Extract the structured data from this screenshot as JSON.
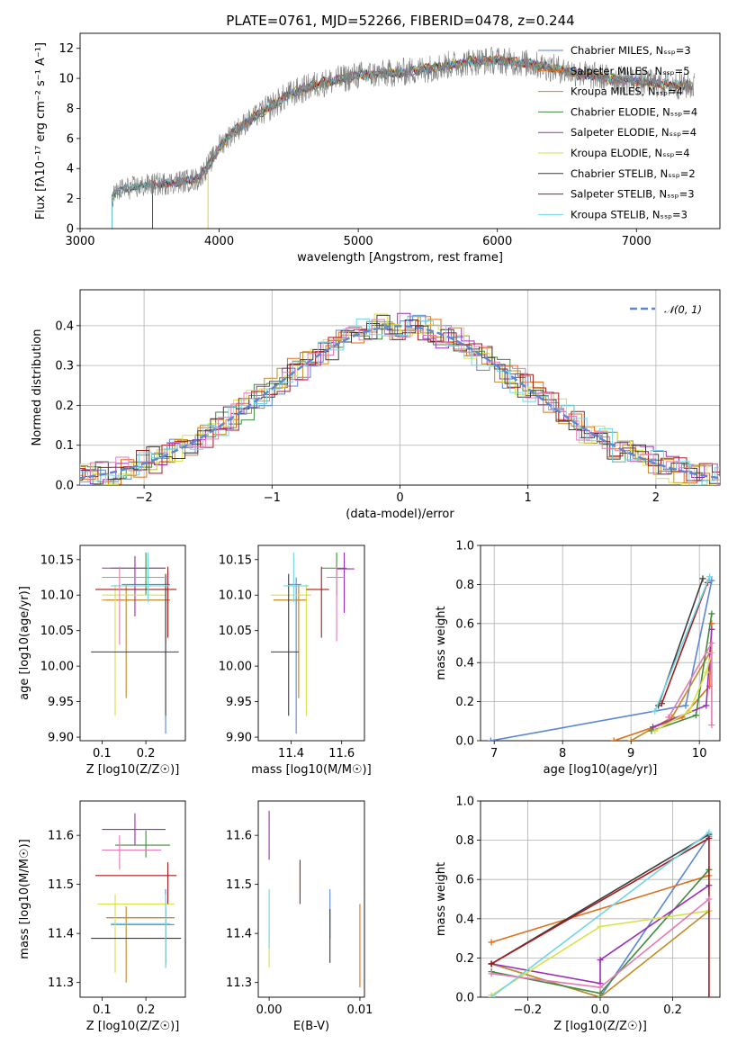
{
  "figure_title": "PLATE=0761, MJD=52266, FIBERID=0478, z=0.244",
  "colors": {
    "Chabrier MILES": "#5b86d6",
    "Salpeter MILES": "#e06f1b",
    "Kroupa MILES": "#c48a23",
    "Chabrier ELODIE": "#3f8a3f",
    "Salpeter ELODIE": "#9b2eb8",
    "Kroupa ELODIE": "#d8e14a",
    "Chabrier STELIB": "#3c3c3c",
    "Salpeter STELIB": "#a81a1a",
    "Kroupa STELIB": "#6fd6e6",
    "pink": "#e57ab5",
    "gaussian": "#5b86d6"
  },
  "chart_data": [
    {
      "id": "spectrum",
      "type": "line",
      "title": "PLATE=0761, MJD=52266, FIBERID=0478, z=0.244",
      "xlabel": "wavelength [Angstrom, rest frame]",
      "ylabel": "Flux [fλ10⁻¹⁷ erg cm⁻² s⁻¹ A⁻¹]",
      "xlim": [
        3000,
        7600
      ],
      "ylim": [
        0,
        13
      ],
      "xticks": [
        3000,
        4000,
        5000,
        6000,
        7000
      ],
      "yticks": [
        0,
        2,
        4,
        6,
        8,
        10,
        12
      ],
      "legend": [
        "Chabrier MILES, N_SSP=3",
        "Salpeter MILES, N_SSP=5",
        "Kroupa MILES, N_SSP=4",
        "Chabrier ELODIE, N_SSP=4",
        "Salpeter ELODIE, N_SSP=4",
        "Kroupa ELODIE, N_SSP=4",
        "Chabrier STELIB, N_SSP=2",
        "Salpeter STELIB, N_SSP=3",
        "Kroupa STELIB, N_SSP=3"
      ],
      "legend_position": "right",
      "continuum": {
        "x": [
          3230,
          3300,
          3500,
          3700,
          3850,
          3950,
          4000,
          4100,
          4200,
          4300,
          4500,
          4700,
          4900,
          5000,
          5200,
          5400,
          5600,
          5800,
          6000,
          6200,
          6400,
          6600,
          6800,
          7000,
          7200,
          7400
        ],
        "y": [
          2.2,
          2.6,
          2.9,
          3.1,
          3.3,
          4.6,
          5.5,
          6.4,
          7.1,
          7.7,
          8.9,
          9.6,
          10.0,
          10.2,
          10.3,
          10.5,
          10.8,
          11.1,
          11.2,
          11.0,
          10.7,
          10.3,
          10.0,
          9.8,
          9.6,
          9.5
        ]
      }
    },
    {
      "id": "residuals",
      "type": "histogram",
      "xlabel": "(data-model)/error",
      "ylabel": "Normed distribution",
      "xlim": [
        -2.5,
        2.5
      ],
      "ylim": [
        0,
        0.49
      ],
      "xticks": [
        -2,
        -1,
        0,
        1,
        2
      ],
      "yticks": [
        0.0,
        0.1,
        0.2,
        0.3,
        0.4
      ],
      "legend": [
        "N(0,1)"
      ],
      "grid": true
    },
    {
      "id": "age_vs_Z",
      "type": "errorbar",
      "xlabel": "Z [log10(Z/Z☉)]",
      "ylabel": "age  [log10(age/yr)]",
      "xlim": [
        0.05,
        0.29
      ],
      "ylim": [
        9.895,
        10.17
      ],
      "xticks": [
        0.1,
        0.2
      ],
      "yticks": [
        9.9,
        9.95,
        10.0,
        10.05,
        10.1,
        10.15
      ],
      "points": [
        {
          "c": "Chabrier MILES",
          "x": 0.245,
          "y": 10.115,
          "xl": 0.145,
          "xh": 0.255,
          "yl": 9.905,
          "yh": 10.125
        },
        {
          "c": "Salpeter MILES",
          "x": 0.245,
          "y": 10.093,
          "xl": 0.11,
          "xh": 0.255,
          "yl": 10.03,
          "yh": 10.115
        },
        {
          "c": "Kroupa MILES",
          "x": 0.155,
          "y": 10.093,
          "xl": 0.1,
          "xh": 0.255,
          "yl": 9.955,
          "yh": 10.115
        },
        {
          "c": "Chabrier ELODIE",
          "x": 0.2,
          "y": 10.138,
          "xl": 0.12,
          "xh": 0.245,
          "yl": 10.1,
          "yh": 10.16
        },
        {
          "c": "Salpeter ELODIE",
          "x": 0.175,
          "y": 10.138,
          "xl": 0.1,
          "xh": 0.245,
          "yl": 10.07,
          "yh": 10.155
        },
        {
          "c": "Kroupa ELODIE",
          "x": 0.13,
          "y": 10.1,
          "xl": 0.1,
          "xh": 0.245,
          "yl": 9.93,
          "yh": 10.115
        },
        {
          "c": "Chabrier STELIB",
          "x": 0.245,
          "y": 10.02,
          "xl": 0.075,
          "xh": 0.275,
          "yl": 9.93,
          "yh": 10.13
        },
        {
          "c": "Salpeter STELIB",
          "x": 0.25,
          "y": 10.108,
          "xl": 0.085,
          "xh": 0.27,
          "yl": 10.04,
          "yh": 10.14
        },
        {
          "c": "Kroupa STELIB",
          "x": 0.205,
          "y": 10.113,
          "xl": 0.12,
          "xh": 0.255,
          "yl": 10.09,
          "yh": 10.16
        },
        {
          "c": "pink",
          "x": 0.14,
          "y": 10.125,
          "xl": 0.1,
          "xh": 0.25,
          "yl": 10.03,
          "yh": 10.14
        }
      ]
    },
    {
      "id": "age_vs_mass",
      "type": "errorbar",
      "xlabel": "mass [log10(M/M☉)]",
      "xlim": [
        11.27,
        11.69
      ],
      "ylim": [
        9.895,
        10.17
      ],
      "xticks": [
        11.4,
        11.6
      ],
      "yticks": [
        9.9,
        9.95,
        10.0,
        10.05,
        10.1,
        10.15
      ],
      "points": [
        {
          "c": "Chabrier MILES",
          "x": 11.42,
          "y": 10.115,
          "xl": 11.39,
          "xh": 11.44,
          "yl": 9.905,
          "yh": 10.125
        },
        {
          "c": "Salpeter MILES",
          "x": 11.43,
          "y": 10.093,
          "xl": 11.33,
          "xh": 11.46,
          "yl": 9.955,
          "yh": 10.115
        },
        {
          "c": "Kroupa MILES",
          "x": 11.43,
          "y": 10.093,
          "xl": 11.33,
          "xh": 11.46,
          "yl": 9.955,
          "yh": 10.115
        },
        {
          "c": "Chabrier ELODIE",
          "x": 11.58,
          "y": 10.138,
          "xl": 11.52,
          "xh": 11.62,
          "yl": 10.1,
          "yh": 10.16
        },
        {
          "c": "Salpeter ELODIE",
          "x": 11.61,
          "y": 10.137,
          "xl": 11.58,
          "xh": 11.65,
          "yl": 10.075,
          "yh": 10.16
        },
        {
          "c": "Kroupa ELODIE",
          "x": 11.46,
          "y": 10.1,
          "xl": 11.32,
          "xh": 11.48,
          "yl": 9.93,
          "yh": 10.115
        },
        {
          "c": "Chabrier STELIB",
          "x": 11.39,
          "y": 10.02,
          "xl": 11.32,
          "xh": 11.43,
          "yl": 9.93,
          "yh": 10.13
        },
        {
          "c": "Salpeter STELIB",
          "x": 11.52,
          "y": 10.108,
          "xl": 11.46,
          "xh": 11.55,
          "yl": 10.04,
          "yh": 10.14
        },
        {
          "c": "Kroupa STELIB",
          "x": 11.41,
          "y": 10.113,
          "xl": 11.37,
          "xh": 11.47,
          "yl": 10.09,
          "yh": 10.16
        },
        {
          "c": "pink",
          "x": 11.58,
          "y": 10.125,
          "xl": 11.54,
          "xh": 11.61,
          "yl": 10.035,
          "yh": 10.14
        }
      ]
    },
    {
      "id": "weight_vs_age",
      "type": "line",
      "xlabel": "age  [log10(age/yr)]",
      "ylabel": "mass weight",
      "xlim": [
        6.8,
        10.3
      ],
      "ylim": [
        0,
        1
      ],
      "xticks": [
        7,
        8,
        9,
        10
      ],
      "yticks": [
        0.0,
        0.2,
        0.4,
        0.6,
        0.8,
        1.0
      ],
      "grid": true,
      "series": [
        {
          "c": "Chabrier MILES",
          "x": [
            6.95,
            9.8,
            10.18
          ],
          "y": [
            0.0,
            0.18,
            0.82
          ]
        },
        {
          "c": "Salpeter MILES",
          "x": [
            8.75,
            9.75,
            10.15,
            10.18
          ],
          "y": [
            0.0,
            0.12,
            0.28,
            0.6
          ]
        },
        {
          "c": "Kroupa MILES",
          "x": [
            9.0,
            9.6,
            10.15
          ],
          "y": [
            0.0,
            0.12,
            0.45
          ]
        },
        {
          "c": "Chabrier ELODIE",
          "x": [
            9.3,
            9.95,
            10.18
          ],
          "y": [
            0.05,
            0.13,
            0.65
          ]
        },
        {
          "c": "Salpeter ELODIE",
          "x": [
            9.32,
            10.1,
            10.18
          ],
          "y": [
            0.07,
            0.18,
            0.57
          ]
        },
        {
          "c": "Kroupa ELODIE",
          "x": [
            9.35,
            9.85,
            10.1,
            10.18
          ],
          "y": [
            0.05,
            0.15,
            0.35,
            0.45
          ]
        },
        {
          "c": "Chabrier STELIB",
          "x": [
            9.4,
            10.05
          ],
          "y": [
            0.18,
            0.83
          ]
        },
        {
          "c": "Salpeter STELIB",
          "x": [
            9.45,
            10.12
          ],
          "y": [
            0.19,
            0.81
          ]
        },
        {
          "c": "Kroupa STELIB",
          "x": [
            9.35,
            10.15
          ],
          "y": [
            0.15,
            0.84
          ]
        },
        {
          "c": "pink",
          "x": [
            9.55,
            10.18,
            10.18
          ],
          "y": [
            0.12,
            0.5,
            0.08
          ]
        }
      ]
    },
    {
      "id": "mass_vs_Z",
      "type": "errorbar",
      "xlabel": "Z [log10(Z/Z☉)]",
      "ylabel": "mass [log10(M/M☉)]",
      "xlim": [
        0.05,
        0.29
      ],
      "ylim": [
        11.27,
        11.67
      ],
      "xticks": [
        0.1,
        0.2
      ],
      "yticks": [
        11.3,
        11.4,
        11.5,
        11.6
      ],
      "points": [
        {
          "c": "Chabrier MILES",
          "x": 0.245,
          "y": 11.418,
          "xl": 0.12,
          "xh": 0.265,
          "yl": 11.33,
          "yh": 11.49
        },
        {
          "c": "Salpeter MILES",
          "x": 0.245,
          "y": 11.432,
          "xl": 0.11,
          "xh": 0.265,
          "yl": 11.33,
          "yh": 11.47
        },
        {
          "c": "Kroupa MILES",
          "x": 0.155,
          "y": 11.432,
          "xl": 0.11,
          "xh": 0.265,
          "yl": 11.3,
          "yh": 11.455
        },
        {
          "c": "Chabrier ELODIE",
          "x": 0.2,
          "y": 11.58,
          "xl": 0.13,
          "xh": 0.255,
          "yl": 11.555,
          "yh": 11.61
        },
        {
          "c": "Salpeter ELODIE",
          "x": 0.175,
          "y": 11.612,
          "xl": 0.1,
          "xh": 0.245,
          "yl": 11.58,
          "yh": 11.645
        },
        {
          "c": "Kroupa ELODIE",
          "x": 0.13,
          "y": 11.46,
          "xl": 0.09,
          "xh": 0.265,
          "yl": 11.32,
          "yh": 11.48
        },
        {
          "c": "Chabrier STELIB",
          "x": 0.245,
          "y": 11.39,
          "xl": 0.075,
          "xh": 0.28,
          "yl": 11.34,
          "yh": 11.45
        },
        {
          "c": "Salpeter STELIB",
          "x": 0.25,
          "y": 11.518,
          "xl": 0.085,
          "xh": 0.27,
          "yl": 11.46,
          "yh": 11.545
        },
        {
          "c": "Kroupa STELIB",
          "x": 0.245,
          "y": 11.42,
          "xl": 0.12,
          "xh": 0.255,
          "yl": 11.33,
          "yh": 11.48
        },
        {
          "c": "pink",
          "x": 0.14,
          "y": 11.57,
          "xl": 0.1,
          "xh": 0.235,
          "yl": 11.53,
          "yh": 11.6
        }
      ]
    },
    {
      "id": "mass_vs_EBV",
      "type": "errorbar",
      "xlabel": "E(B-V)",
      "xlim": [
        -0.0012,
        0.0105
      ],
      "ylim": [
        11.27,
        11.67
      ],
      "xticks": [
        0.0,
        0.01
      ],
      "yticks": [
        11.3,
        11.4,
        11.5,
        11.6
      ],
      "points": [
        {
          "c": "Salpeter ELODIE",
          "x": 0.0,
          "y": 11.6,
          "yl": 11.55,
          "yh": 11.65
        },
        {
          "c": "Kroupa ELODIE",
          "x": 0.0,
          "y": 11.36,
          "yl": 11.33,
          "yh": 11.4
        },
        {
          "c": "Kroupa STELIB",
          "x": 0.0,
          "y": 11.44,
          "yl": 11.37,
          "yh": 11.49
        },
        {
          "c": "Salpeter STELIB",
          "x": 0.0034,
          "y": 11.5,
          "yl": 11.46,
          "yh": 11.55
        },
        {
          "c": "Chabrier MILES",
          "x": 0.0067,
          "y": 11.42,
          "yl": 11.39,
          "yh": 11.49
        },
        {
          "c": "Chabrier STELIB",
          "x": 0.0067,
          "y": 11.39,
          "yl": 11.34,
          "yh": 11.45
        },
        {
          "c": "Salpeter MILES",
          "x": 0.01,
          "y": 11.38,
          "yl": 11.29,
          "yh": 11.46
        }
      ]
    },
    {
      "id": "weight_vs_Z",
      "type": "line",
      "xlabel": "Z [log10(Z/Z☉)]",
      "ylabel": "mass weight",
      "xlim": [
        -0.33,
        0.33
      ],
      "ylim": [
        0,
        1
      ],
      "xticks": [
        -0.2,
        0.0,
        0.2
      ],
      "yticks": [
        0.0,
        0.2,
        0.4,
        0.6,
        0.8,
        1.0
      ],
      "grid": true,
      "series": [
        {
          "c": "Chabrier MILES",
          "x": [
            -0.3,
            0.0,
            0.3
          ],
          "y": [
            0.17,
            0.0,
            0.82
          ]
        },
        {
          "c": "Salpeter MILES",
          "x": [
            -0.3,
            0.3
          ],
          "y": [
            0.28,
            0.62
          ]
        },
        {
          "c": "Kroupa MILES",
          "x": [
            -0.3,
            0.0,
            0.3
          ],
          "y": [
            0.17,
            0.0,
            0.44
          ]
        },
        {
          "c": "Chabrier ELODIE",
          "x": [
            -0.3,
            0.0,
            0.3
          ],
          "y": [
            0.13,
            0.02,
            0.65
          ]
        },
        {
          "c": "Salpeter ELODIE",
          "x": [
            -0.3,
            0.0,
            0.0,
            0.3
          ],
          "y": [
            0.17,
            0.07,
            0.19,
            0.57
          ]
        },
        {
          "c": "Kroupa ELODIE",
          "x": [
            -0.3,
            0.0,
            0.3
          ],
          "y": [
            0.01,
            0.36,
            0.44
          ]
        },
        {
          "c": "Chabrier STELIB",
          "x": [
            -0.3,
            0.3
          ],
          "y": [
            0.17,
            0.83
          ]
        },
        {
          "c": "Salpeter STELIB",
          "x": [
            -0.3,
            0.3,
            0.3
          ],
          "y": [
            0.17,
            0.81,
            0.0
          ]
        },
        {
          "c": "Kroupa STELIB",
          "x": [
            -0.3,
            0.3
          ],
          "y": [
            0.0,
            0.84
          ]
        },
        {
          "c": "pink",
          "x": [
            -0.3,
            0.0,
            0.3
          ],
          "y": [
            0.12,
            0.05,
            0.5
          ]
        }
      ]
    }
  ]
}
